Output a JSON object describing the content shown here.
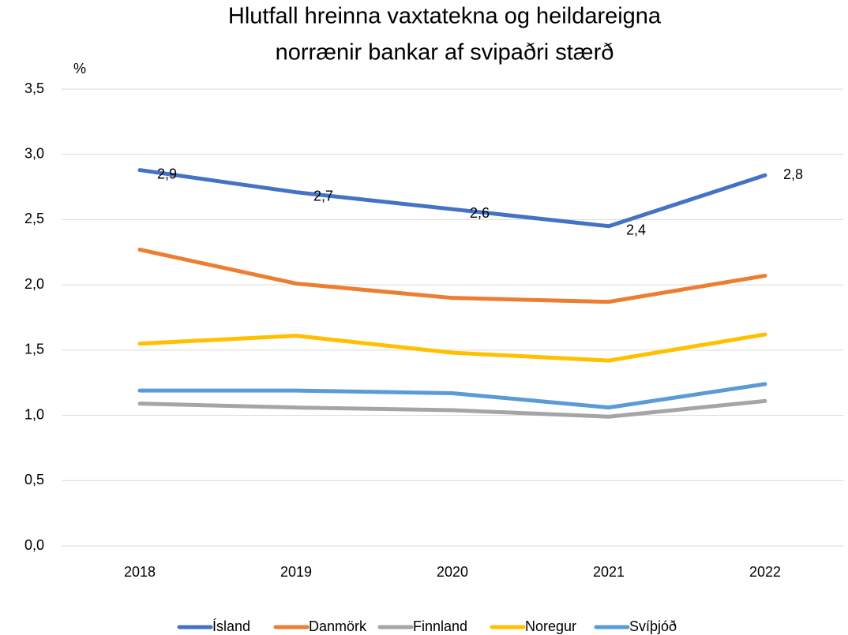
{
  "chart_data": {
    "type": "line",
    "title": [
      "Hlutfall hreinna vaxtatekna og heildareigna",
      "norrænir bankar af svipaðri stærð"
    ],
    "y_label": "%",
    "categories": [
      "2018",
      "2019",
      "2020",
      "2021",
      "2022"
    ],
    "series": [
      {
        "name": "Ísland",
        "color": "#4472c4",
        "values": [
          2.88,
          2.71,
          2.58,
          2.45,
          2.84
        ],
        "value_labels": [
          "2,9",
          "2,7",
          "2,6",
          "2,4",
          "2,8"
        ]
      },
      {
        "name": "Danmörk",
        "color": "#ed7d31",
        "values": [
          2.27,
          2.01,
          1.9,
          1.87,
          2.07
        ]
      },
      {
        "name": "Finnland",
        "color": "#a5a5a5",
        "values": [
          1.09,
          1.06,
          1.04,
          0.99,
          1.11
        ]
      },
      {
        "name": "Noregur",
        "color": "#ffc000",
        "values": [
          1.55,
          1.61,
          1.48,
          1.42,
          1.62
        ]
      },
      {
        "name": "Svíþjóð",
        "color": "#5b9bd5",
        "values": [
          1.19,
          1.19,
          1.17,
          1.06,
          1.24
        ]
      }
    ],
    "ylim": [
      0,
      3.5
    ],
    "yticks": [
      {
        "value": 0,
        "label": "0,0"
      },
      {
        "value": 0.5,
        "label": "0,5"
      },
      {
        "value": 1,
        "label": "1,0"
      },
      {
        "value": 1.5,
        "label": "1,5"
      },
      {
        "value": 2,
        "label": "2,0"
      },
      {
        "value": 2.5,
        "label": "2,5"
      },
      {
        "value": 3,
        "label": "3,0"
      },
      {
        "value": 3.5,
        "label": "3,5"
      }
    ],
    "grid": true,
    "legend": "bottom"
  }
}
